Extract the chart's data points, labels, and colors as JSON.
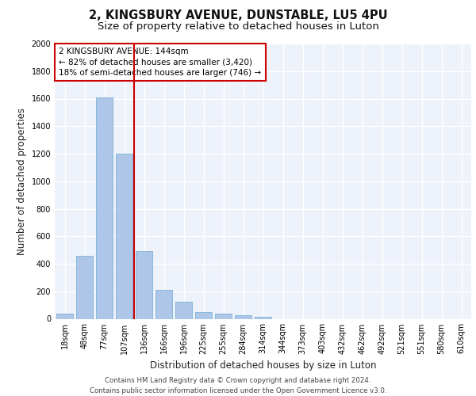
{
  "title_line1": "2, KINGSBURY AVENUE, DUNSTABLE, LU5 4PU",
  "title_line2": "Size of property relative to detached houses in Luton",
  "xlabel": "Distribution of detached houses by size in Luton",
  "ylabel": "Number of detached properties",
  "footer_line1": "Contains HM Land Registry data © Crown copyright and database right 2024.",
  "footer_line2": "Contains public sector information licensed under the Open Government Licence v3.0.",
  "categories": [
    "18sqm",
    "48sqm",
    "77sqm",
    "107sqm",
    "136sqm",
    "166sqm",
    "196sqm",
    "225sqm",
    "255sqm",
    "284sqm",
    "314sqm",
    "344sqm",
    "373sqm",
    "403sqm",
    "432sqm",
    "462sqm",
    "492sqm",
    "521sqm",
    "551sqm",
    "580sqm",
    "610sqm"
  ],
  "values": [
    35,
    460,
    1610,
    1200,
    490,
    210,
    125,
    50,
    40,
    25,
    15,
    0,
    0,
    0,
    0,
    0,
    0,
    0,
    0,
    0,
    0
  ],
  "bar_color": "#aec6e8",
  "bar_edge_color": "#6aaad4",
  "property_size_bin_index": 4,
  "annotation_line1": "2 KINGSBURY AVENUE: 144sqm",
  "annotation_line2": "← 82% of detached houses are smaller (3,420)",
  "annotation_line3": "18% of semi-detached houses are larger (746) →",
  "annotation_box_color": "#cc0000",
  "vline_color": "#cc0000",
  "ylim": [
    0,
    2000
  ],
  "yticks": [
    0,
    200,
    400,
    600,
    800,
    1000,
    1200,
    1400,
    1600,
    1800,
    2000
  ],
  "background_color": "#eef2fa",
  "grid_color": "#ffffff",
  "title_fontsize": 10.5,
  "subtitle_fontsize": 9.5,
  "xlabel_fontsize": 8.5,
  "ylabel_fontsize": 8.5,
  "tick_fontsize": 7,
  "annotation_fontsize": 7.5,
  "footer_fontsize": 6.2
}
